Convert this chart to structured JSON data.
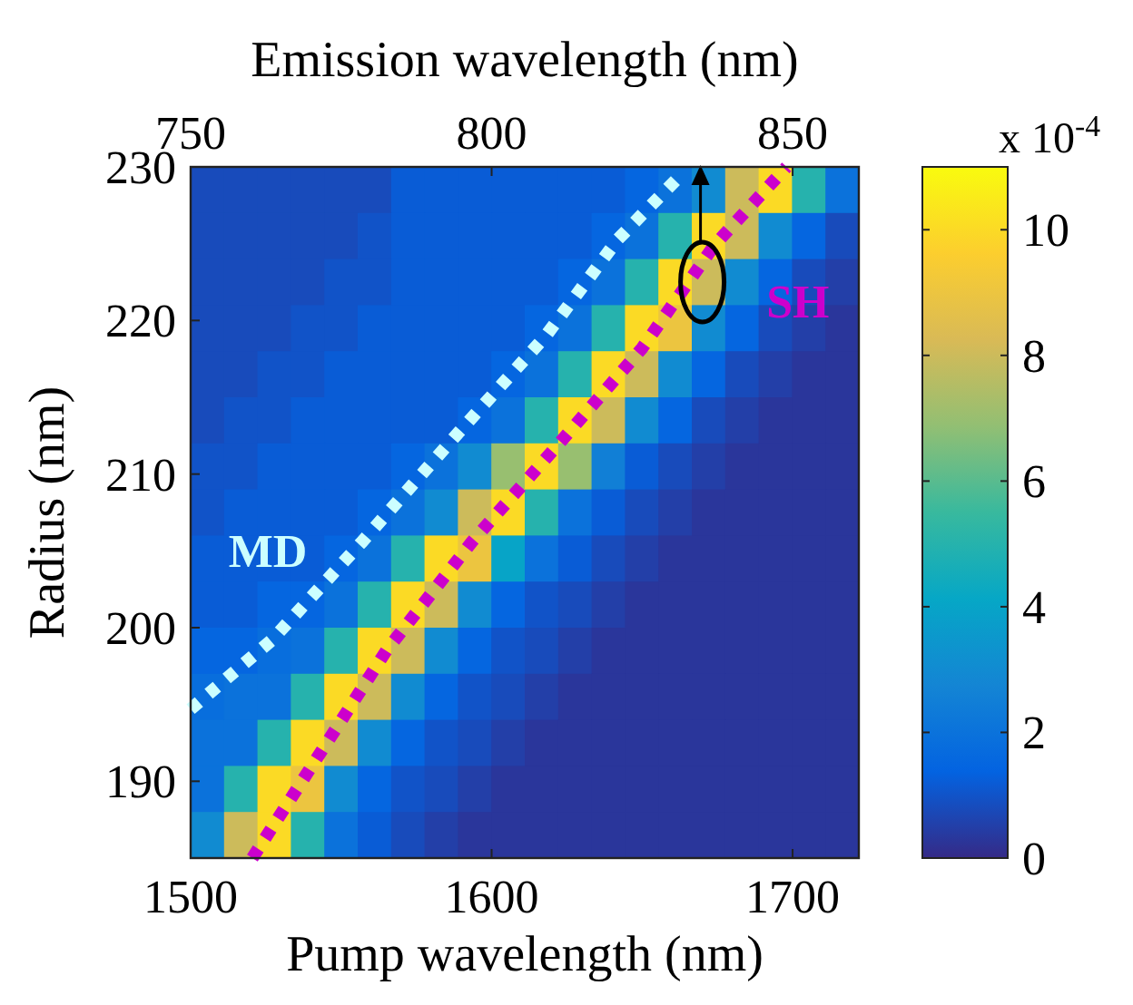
{
  "chart_data": {
    "type": "heatmap",
    "xlabel": "Pump wavelength (nm)",
    "ylabel": "Radius (nm)",
    "x2label": "Emission wavelength (nm)",
    "clabel": "x 10$^{-4}$",
    "xlim": [
      1500,
      1722
    ],
    "xticks": [
      1500,
      1600,
      1700
    ],
    "ylim": [
      185,
      230
    ],
    "yticks": [
      190,
      200,
      210,
      220,
      230
    ],
    "x2lim": [
      750,
      861
    ],
    "x2ticks": [
      750,
      800,
      850
    ],
    "clim": [
      0,
      11
    ],
    "cticks": [
      0,
      2,
      4,
      6,
      8,
      10
    ],
    "x": [
      1505.55,
      1516.65,
      1527.75,
      1538.85,
      1549.95,
      1561.05,
      1572.15,
      1583.25,
      1594.35,
      1605.45,
      1616.55,
      1627.65,
      1638.75,
      1649.85,
      1660.95,
      1672.05,
      1683.15,
      1694.25,
      1705.35,
      1716.45
    ],
    "y": [
      228.5,
      225.5,
      222.5,
      219.5,
      216.5,
      213.5,
      210.5,
      207.5,
      204.5,
      201.5,
      198.5,
      195.5,
      192.5,
      189.5,
      186.5
    ],
    "cells": [
      [
        0.8,
        0.8,
        0.8,
        0.8,
        0.8,
        0.8,
        1.2,
        1.2,
        1.2,
        1.2,
        1.2,
        1.2,
        1.2,
        1.5,
        2,
        3,
        8,
        10,
        5,
        2
      ],
      [
        0.8,
        0.8,
        0.8,
        0.8,
        0.8,
        1,
        1.2,
        1.2,
        1.2,
        1.2,
        1.2,
        1.2,
        1.5,
        2,
        5,
        10,
        8,
        3,
        1.5,
        0.8
      ],
      [
        0.8,
        0.8,
        0.8,
        0.8,
        1,
        1,
        1.2,
        1.2,
        1.2,
        1.2,
        1.2,
        1.5,
        2,
        5,
        10,
        8,
        3,
        1.5,
        0.8,
        0.5
      ],
      [
        0.8,
        0.8,
        0.8,
        1,
        1,
        1.2,
        1.2,
        1.2,
        1.2,
        1.2,
        1.5,
        2,
        5,
        10,
        9,
        3,
        1.5,
        0.8,
        0.5,
        0.3
      ],
      [
        0.8,
        0.8,
        1,
        1,
        1.2,
        1.2,
        1.2,
        1.2,
        1.2,
        1.5,
        2,
        5,
        10,
        8,
        3,
        1.5,
        0.8,
        0.5,
        0.3,
        0.3
      ],
      [
        0.8,
        1,
        1,
        1.2,
        1.2,
        1.2,
        1.2,
        1.2,
        1.5,
        2,
        5,
        10,
        8,
        3,
        1.5,
        0.8,
        0.5,
        0.3,
        0.3,
        0.3
      ],
      [
        1,
        1,
        1.2,
        1.2,
        1.2,
        1.2,
        1.5,
        2,
        3,
        7,
        10,
        7,
        2.5,
        1.2,
        0.8,
        0.5,
        0.3,
        0.3,
        0.3,
        0.3
      ],
      [
        1,
        1.2,
        1.2,
        1.2,
        1.2,
        1.5,
        2,
        3,
        8,
        10,
        5,
        2,
        1.2,
        0.8,
        0.5,
        0.3,
        0.3,
        0.3,
        0.3,
        0.3
      ],
      [
        1.2,
        1.2,
        1.2,
        1.2,
        1.5,
        2,
        5,
        10,
        9,
        4,
        2,
        1.2,
        0.8,
        0.5,
        0.3,
        0.3,
        0.3,
        0.3,
        0.3,
        0.3
      ],
      [
        1.2,
        1.2,
        1.5,
        1.5,
        2,
        5,
        10,
        8,
        3,
        1.5,
        1,
        0.8,
        0.5,
        0.3,
        0.3,
        0.3,
        0.3,
        0.3,
        0.3,
        0.3
      ],
      [
        1.5,
        1.5,
        1.8,
        2,
        5,
        10,
        8,
        3,
        1.5,
        1,
        0.8,
        0.5,
        0.3,
        0.3,
        0.3,
        0.3,
        0.3,
        0.3,
        0.3,
        0.3
      ],
      [
        1.8,
        2,
        2,
        5,
        10,
        8,
        3,
        1.5,
        1,
        0.8,
        0.5,
        0.3,
        0.3,
        0.3,
        0.3,
        0.3,
        0.3,
        0.3,
        0.3,
        0.3
      ],
      [
        2,
        2,
        5,
        10,
        8,
        3,
        1.5,
        1,
        0.8,
        0.5,
        0.3,
        0.3,
        0.3,
        0.3,
        0.3,
        0.3,
        0.3,
        0.3,
        0.3,
        0.3
      ],
      [
        2,
        5,
        10,
        9,
        3,
        1.5,
        1,
        0.8,
        0.5,
        0.3,
        0.3,
        0.3,
        0.3,
        0.3,
        0.3,
        0.3,
        0.3,
        0.3,
        0.3,
        0.3
      ],
      [
        3,
        8,
        10,
        5,
        2,
        1.2,
        0.8,
        0.5,
        0.3,
        0.3,
        0.3,
        0.3,
        0.3,
        0.3,
        0.3,
        0.3,
        0.3,
        0.3,
        0.3,
        0.3
      ]
    ],
    "series": [
      {
        "type": "line",
        "name": "MD",
        "color": "#ccffff",
        "x": [
          1500,
          1527,
          1557,
          1589,
          1618,
          1642,
          1662
        ],
        "values": [
          194.7,
          199.2,
          205.6,
          212.7,
          219,
          225.3,
          229.3
        ]
      },
      {
        "type": "line",
        "name": "SH",
        "color": "#cc00cc",
        "x": [
          1520.5,
          1565,
          1593.5,
          1622,
          1650,
          1674,
          1698
        ],
        "values": [
          185,
          198.5,
          205.6,
          211.9,
          218.2,
          224.9,
          230
        ]
      }
    ],
    "line_style": "dotted",
    "marker": "none"
  }
}
